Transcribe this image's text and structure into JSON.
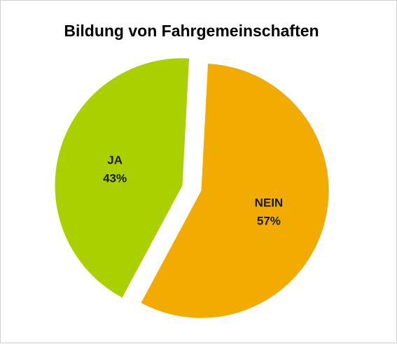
{
  "chart_data": {
    "type": "pie",
    "title": "Bildung von Fahrgemeinschaften",
    "categories": [
      "JA",
      "NEIN"
    ],
    "values": [
      43,
      57
    ],
    "percent_labels": [
      "43%",
      "57%"
    ],
    "colors": [
      "#aad000",
      "#f2ab00"
    ],
    "exploded": true,
    "legend": "none"
  }
}
